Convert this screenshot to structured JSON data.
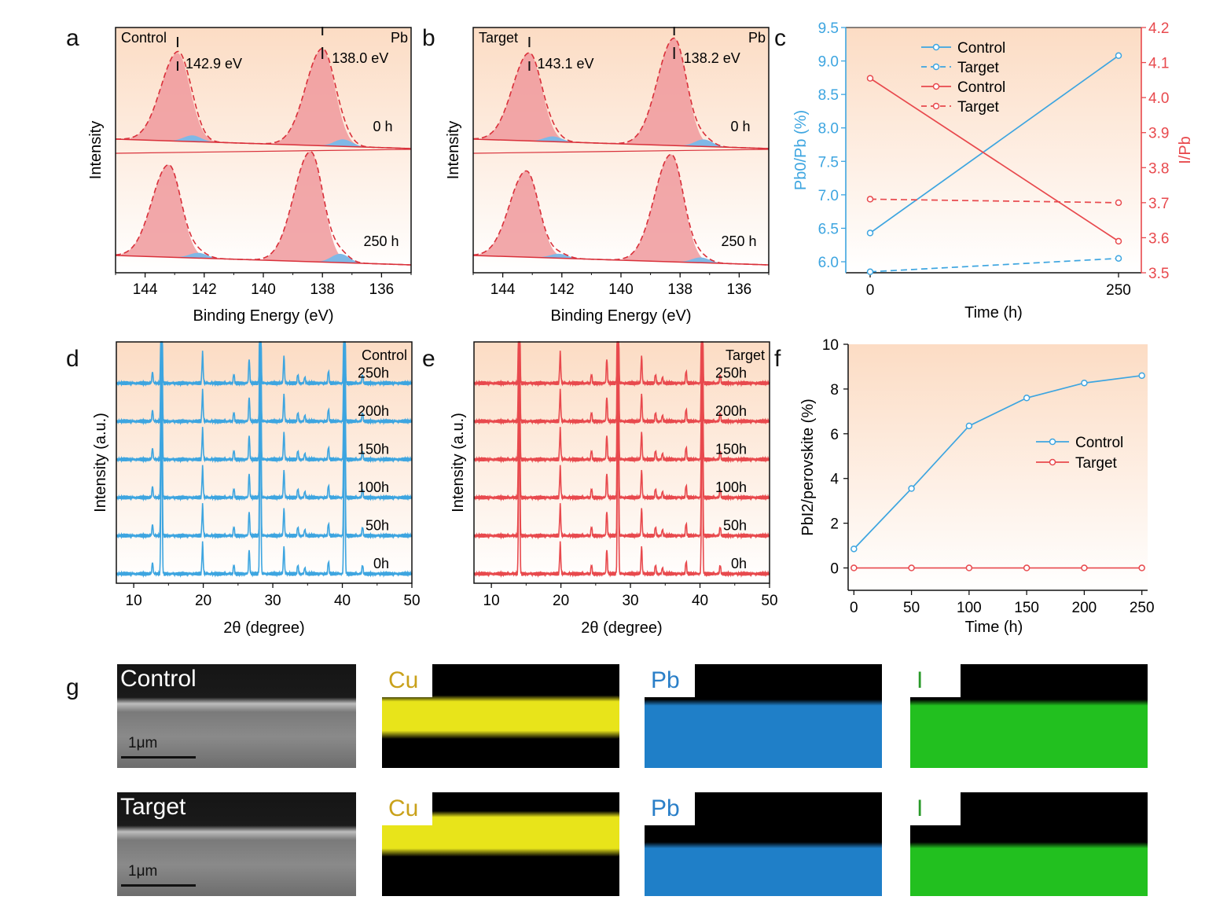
{
  "panels": {
    "a": "a",
    "b": "b",
    "c": "c",
    "d": "d",
    "e": "e",
    "f": "f",
    "g": "g"
  },
  "colors": {
    "control": "#3da5e0",
    "target": "#e8494d",
    "bg_top": "#fcdcc4",
    "peak": "#f0999c",
    "shoulder": "#7fb8e6",
    "cu": "#e8e41a",
    "pb": "#1f7fc8",
    "i": "#22c01f"
  },
  "chart_data": [
    {
      "type": "area",
      "panel": "a",
      "xlabel": "Binding Energy (eV)",
      "ylabel": "Intensity",
      "xlim": [
        145,
        135
      ],
      "xticks": [
        144,
        142,
        140,
        138,
        136
      ],
      "corner_left": "Control",
      "corner_right": "Pb",
      "peak_labels": [
        "142.9 eV",
        "138.0 eV"
      ],
      "traces": [
        {
          "name": "0 h",
          "peaks": [
            {
              "center": 142.9,
              "height": 1.0,
              "width": 0.42
            },
            {
              "center": 138.0,
              "height": 1.1,
              "width": 0.42
            }
          ],
          "shoulders": [
            {
              "center": 142.4,
              "height": 0.07
            },
            {
              "center": 137.3,
              "height": 0.08
            }
          ]
        },
        {
          "name": "250 h",
          "peaks": [
            {
              "center": 143.2,
              "height": 1.05,
              "width": 0.42
            },
            {
              "center": 138.4,
              "height": 1.25,
              "width": 0.42
            }
          ],
          "shoulders": [
            {
              "center": 142.2,
              "height": 0.06
            },
            {
              "center": 137.4,
              "height": 0.1
            }
          ]
        }
      ]
    },
    {
      "type": "area",
      "panel": "b",
      "xlabel": "Binding Energy (eV)",
      "ylabel": "Intensity",
      "xlim": [
        145,
        135
      ],
      "xticks": [
        144,
        142,
        140,
        138,
        136
      ],
      "corner_left": "Target",
      "corner_right": "Pb",
      "peak_labels": [
        "143.1 eV",
        "138.2 eV"
      ],
      "traces": [
        {
          "name": "0 h",
          "peaks": [
            {
              "center": 143.1,
              "height": 1.0,
              "width": 0.42
            },
            {
              "center": 138.2,
              "height": 1.22,
              "width": 0.42
            }
          ],
          "shoulders": [
            {
              "center": 142.3,
              "height": 0.06
            },
            {
              "center": 137.2,
              "height": 0.08
            }
          ]
        },
        {
          "name": "250 h",
          "peaks": [
            {
              "center": 143.2,
              "height": 0.98,
              "width": 0.42
            },
            {
              "center": 138.3,
              "height": 1.22,
              "width": 0.42
            }
          ],
          "shoulders": [
            {
              "center": 142.1,
              "height": 0.05
            },
            {
              "center": 137.3,
              "height": 0.06
            }
          ]
        }
      ]
    },
    {
      "type": "line",
      "panel": "c",
      "xlabel": "Time (h)",
      "ylabel_left": "Pb0/Pb (%)",
      "ylabel_right": "I/Pb",
      "x": [
        0,
        250
      ],
      "xticks": [
        0,
        250
      ],
      "ylim_left": [
        5.8,
        9.5
      ],
      "yticks_left": [
        6.0,
        6.5,
        7.0,
        7.5,
        8.0,
        8.5,
        9.0,
        9.5
      ],
      "ylim_right": [
        3.5,
        4.2
      ],
      "yticks_right": [
        3.5,
        3.6,
        3.7,
        3.8,
        3.9,
        4.0,
        4.1,
        4.2
      ],
      "series": [
        {
          "name": "Control",
          "axis": "left",
          "color": "blue",
          "dash": false,
          "values": [
            6.43,
            9.08
          ]
        },
        {
          "name": "Target",
          "axis": "left",
          "color": "blue",
          "dash": true,
          "values": [
            5.85,
            6.05
          ]
        },
        {
          "name": "Control",
          "axis": "right",
          "color": "red",
          "dash": false,
          "values": [
            4.055,
            3.59
          ]
        },
        {
          "name": "Target",
          "axis": "right",
          "color": "red",
          "dash": true,
          "values": [
            3.71,
            3.7
          ]
        }
      ]
    },
    {
      "type": "line",
      "panel": "d",
      "xlabel": "2θ (degree)",
      "ylabel": "Intensity (a.u.)",
      "xlim": [
        7.5,
        50
      ],
      "xticks": [
        10,
        20,
        30,
        40,
        50
      ],
      "corner": "Control",
      "traces": [
        "0h",
        "50h",
        "100h",
        "150h",
        "200h",
        "250h"
      ],
      "peaks": [
        {
          "x": 12.7,
          "h": 0.45
        },
        {
          "x": 14.0,
          "h": 8
        },
        {
          "x": 19.9,
          "h": 1.2
        },
        {
          "x": 24.4,
          "h": 0.35
        },
        {
          "x": 26.6,
          "h": 0.95
        },
        {
          "x": 28.2,
          "h": 8
        },
        {
          "x": 31.6,
          "h": 1.05
        },
        {
          "x": 33.6,
          "h": 0.35
        },
        {
          "x": 34.6,
          "h": 0.25
        },
        {
          "x": 38.0,
          "h": 0.5
        },
        {
          "x": 40.3,
          "h": 8
        },
        {
          "x": 42.9,
          "h": 0.35
        }
      ]
    },
    {
      "type": "line",
      "panel": "e",
      "xlabel": "2θ (degree)",
      "ylabel": "Intensity (a.u.)",
      "xlim": [
        7.5,
        50
      ],
      "xticks": [
        10,
        20,
        30,
        40,
        50
      ],
      "corner": "Target",
      "traces": [
        "0h",
        "50h",
        "100h",
        "150h",
        "200h",
        "250h"
      ],
      "peaks": [
        {
          "x": 14.0,
          "h": 8
        },
        {
          "x": 19.9,
          "h": 1.2
        },
        {
          "x": 24.4,
          "h": 0.35
        },
        {
          "x": 26.6,
          "h": 0.95
        },
        {
          "x": 28.2,
          "h": 8
        },
        {
          "x": 31.6,
          "h": 1.05
        },
        {
          "x": 33.6,
          "h": 0.35
        },
        {
          "x": 34.6,
          "h": 0.25
        },
        {
          "x": 38.0,
          "h": 0.5
        },
        {
          "x": 40.3,
          "h": 8
        },
        {
          "x": 42.9,
          "h": 0.35
        }
      ]
    },
    {
      "type": "line",
      "panel": "f",
      "xlabel": "Time (h)",
      "ylabel": "PbI2/perovskite (%)",
      "x": [
        0,
        50,
        100,
        150,
        200,
        250
      ],
      "xlim": [
        -5,
        255
      ],
      "xticks": [
        0,
        50,
        100,
        150,
        200,
        250
      ],
      "ylim": [
        -1,
        10
      ],
      "yticks": [
        0,
        2,
        4,
        6,
        8,
        10
      ],
      "series": [
        {
          "name": "Control",
          "color": "blue",
          "values": [
            0.85,
            3.55,
            6.35,
            7.6,
            8.27,
            8.6
          ]
        },
        {
          "name": "Target",
          "color": "red",
          "values": [
            0,
            0,
            0,
            0,
            0,
            0
          ]
        }
      ]
    }
  ],
  "panel_g": {
    "rows": [
      {
        "sem_label": "Control",
        "scale": "1μm",
        "maps": [
          {
            "element": "Cu"
          },
          {
            "element": "Pb"
          },
          {
            "element": "I"
          }
        ]
      },
      {
        "sem_label": "Target",
        "scale": "1μm",
        "maps": [
          {
            "element": "Cu"
          },
          {
            "element": "Pb"
          },
          {
            "element": "I"
          }
        ]
      }
    ]
  }
}
